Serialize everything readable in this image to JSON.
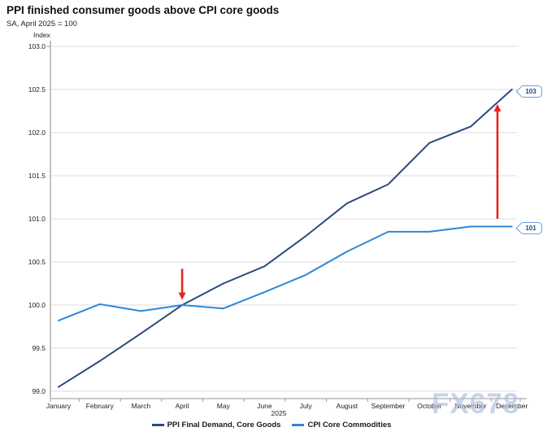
{
  "page": {
    "title": "PPI finished consumer goods above CPI core goods",
    "subtitle": "SA, April 2025 = 100",
    "watermark": "FX678"
  },
  "chart_data": {
    "type": "line",
    "title": "PPI finished consumer goods above CPI core goods",
    "subtitle": "SA, April 2025 = 100",
    "ylabel": "Index",
    "xlabel": "",
    "year_label": "2025",
    "ylim": [
      99.0,
      103.0
    ],
    "ytick_step": 0.5,
    "grid": "horizontal",
    "legend_position": "bottom",
    "categories": [
      "January",
      "February",
      "March",
      "April",
      "May",
      "June",
      "July",
      "August",
      "September",
      "October",
      "November",
      "December"
    ],
    "series": [
      {
        "name": "PPI Final Demand, Core Goods",
        "color": "#2c4a7c",
        "values": [
          99.05,
          99.35,
          99.67,
          100.0,
          100.25,
          100.45,
          100.8,
          101.18,
          101.4,
          101.88,
          102.07,
          102.5
        ]
      },
      {
        "name": "CPI Core Commodities",
        "color": "#2d87d8",
        "values": [
          99.82,
          100.01,
          99.93,
          100.0,
          99.96,
          100.15,
          100.35,
          100.62,
          100.85,
          100.85,
          100.91,
          100.91
        ]
      }
    ],
    "end_labels": [
      {
        "text": "103",
        "series": "PPI Final Demand, Core Goods",
        "at_value": 102.5
      },
      {
        "text": "101",
        "series": "CPI Core Commodities",
        "at_value": 100.91
      }
    ],
    "annotations": {
      "arrows": [
        {
          "direction": "down",
          "month_x": 3.0,
          "from_value": 100.42,
          "to_value": 100.06,
          "color": "#e8241e"
        },
        {
          "direction": "up",
          "month_x": 10.65,
          "from_value": 101.0,
          "to_value": 102.33,
          "color": "#e8241e"
        }
      ]
    }
  }
}
